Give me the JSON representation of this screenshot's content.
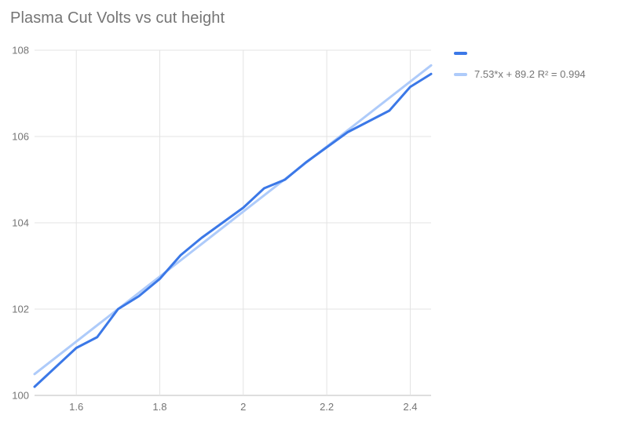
{
  "title": "Plasma Cut Volts vs cut height",
  "colors": {
    "series": "#3B78E7",
    "trend": "#AECBFA",
    "grid": "#E3E3E3",
    "axis_line": "#BDBDBD",
    "tick_text": "#757575",
    "title_text": "#757575",
    "background": "#FFFFFF"
  },
  "legend": {
    "entries": [
      {
        "label": "",
        "color_key": "series"
      },
      {
        "label": "7.53*x + 89.2 R² = 0.994",
        "color_key": "trend"
      }
    ]
  },
  "chart_data": {
    "type": "line",
    "title": "Plasma Cut Volts vs cut height",
    "xlabel": "",
    "ylabel": "",
    "xlim": [
      1.5,
      2.45
    ],
    "ylim": [
      100,
      108
    ],
    "grid": true,
    "legend_position": "right",
    "x_ticks": [
      1.6,
      1.8,
      2,
      2.2,
      2.4
    ],
    "x_tick_labels": [
      "1.6",
      "1.8",
      "2",
      "2.2",
      "2.4"
    ],
    "y_ticks": [
      100,
      102,
      104,
      106,
      108
    ],
    "y_tick_labels": [
      "100",
      "102",
      "104",
      "106",
      "108"
    ],
    "series": [
      {
        "name": "Plasma Cut Volts",
        "role": "data",
        "color_key": "series",
        "x": [
          1.5,
          1.55,
          1.6,
          1.65,
          1.7,
          1.75,
          1.8,
          1.85,
          1.9,
          1.95,
          2.0,
          2.05,
          2.1,
          2.15,
          2.2,
          2.25,
          2.3,
          2.35,
          2.4,
          2.45
        ],
        "y": [
          100.2,
          100.65,
          101.1,
          101.35,
          102.0,
          102.3,
          102.7,
          103.25,
          103.65,
          104.0,
          104.35,
          104.8,
          105.0,
          105.4,
          105.75,
          106.1,
          106.35,
          106.6,
          107.15,
          107.45
        ]
      },
      {
        "name": "Trendline 7.53*x + 89.2",
        "role": "trendline",
        "color_key": "trend",
        "x": [
          1.5,
          2.45
        ],
        "y": [
          100.495,
          107.6485
        ]
      }
    ],
    "trend": {
      "equation": "7.53*x + 89.2",
      "slope": 7.53,
      "intercept": 89.2,
      "r_squared": 0.994
    }
  }
}
